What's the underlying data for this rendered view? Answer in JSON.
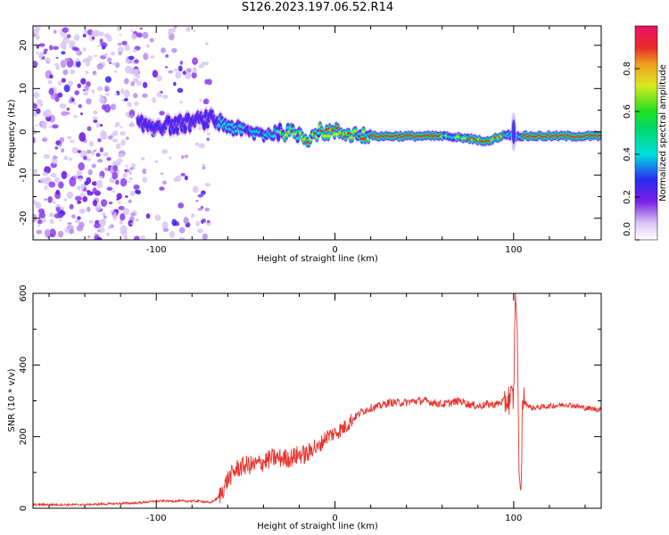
{
  "title": "S126.2023.197.06.52.R14",
  "chart_data": [
    {
      "type": "heatmap",
      "xlabel": "Height of straight line (km)",
      "ylabel": "Frequency (Hz)",
      "xlim": [
        -169,
        149
      ],
      "ylim": [
        -25,
        24.5
      ],
      "xticks": [
        -100,
        0,
        100
      ],
      "yticks": [
        -20,
        -10,
        0,
        10,
        20
      ],
      "ridge": {
        "x": [
          -110,
          -90,
          -70,
          -60,
          -50,
          -40,
          -30,
          -20,
          -15,
          -10,
          0,
          20,
          40,
          60,
          75,
          80,
          85,
          90,
          95,
          100,
          110,
          130,
          149
        ],
        "frequency": [
          1.5,
          1.5,
          3,
          1.5,
          0,
          -0.5,
          0,
          -0.5,
          -1.5,
          0,
          0,
          -1,
          -1,
          -1,
          -1.5,
          -2,
          -2,
          -1.5,
          -0.5,
          -1,
          -1,
          -1,
          -1
        ]
      },
      "colorbar": {
        "label": "Normalized spectral amplitude",
        "range": [
          0,
          1
        ],
        "ticks": [
          0.0,
          0.2,
          0.4,
          0.6,
          0.8
        ],
        "tick_labels": [
          "0.0",
          "0.2",
          "0.4",
          "0.6",
          "0.8"
        ]
      }
    },
    {
      "type": "line",
      "xlabel": "Height of straight line (km)",
      "ylabel": "SNR (10 * v/v)",
      "xlim": [
        -169,
        149
      ],
      "ylim": [
        0,
        600
      ],
      "xticks": [
        -100,
        0,
        100
      ],
      "yticks": [
        0,
        200,
        400,
        600
      ],
      "series": [
        {
          "color": "#e8322d",
          "x": [
            -169,
            -140,
            -110,
            -100,
            -90,
            -75,
            -70,
            -65,
            -60,
            -55,
            -50,
            -45,
            -40,
            -35,
            -30,
            -25,
            -20,
            -15,
            -12,
            -10,
            -5,
            0,
            5,
            10,
            15,
            20,
            25,
            30,
            40,
            45,
            50,
            55,
            60,
            65,
            70,
            75,
            80,
            85,
            90,
            95,
            100,
            101,
            102,
            103,
            104,
            105,
            110,
            120,
            130,
            140,
            149
          ],
          "y": [
            10,
            10,
            15,
            20,
            20,
            20,
            15,
            30,
            80,
            110,
            120,
            120,
            130,
            140,
            140,
            140,
            150,
            150,
            175,
            165,
            200,
            210,
            225,
            250,
            270,
            280,
            285,
            295,
            295,
            300,
            300,
            295,
            290,
            295,
            300,
            290,
            285,
            290,
            290,
            300,
            310,
            600,
            500,
            100,
            40,
            300,
            280,
            285,
            290,
            280,
            275
          ]
        }
      ]
    }
  ]
}
